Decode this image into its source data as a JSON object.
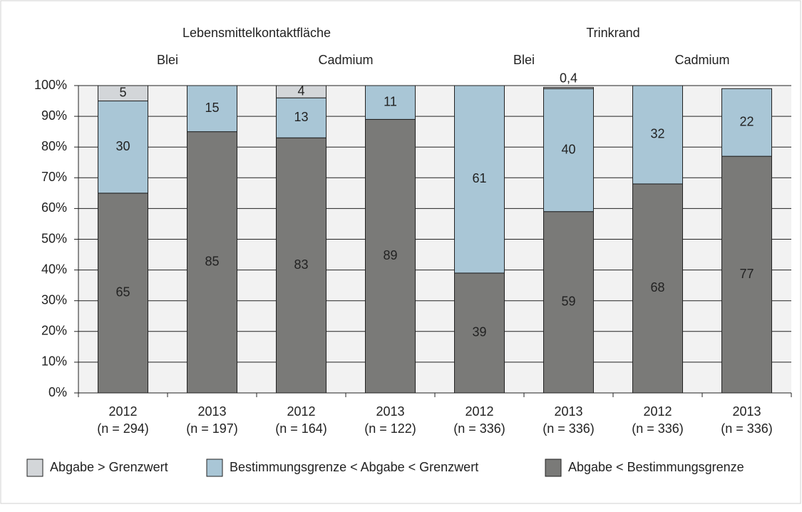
{
  "chart_data": {
    "type": "stacked_bar",
    "groups": [
      {
        "label": "Lebensmittelkontaktfläche",
        "subgroups": [
          "Blei",
          "Cadmium"
        ]
      },
      {
        "label": "Trinkrand",
        "subgroups": [
          "Blei",
          "Cadmium"
        ]
      }
    ],
    "categories": [
      [
        "2012",
        "(n = 294)"
      ],
      [
        "2013",
        "(n = 197)"
      ],
      [
        "2012",
        "(n = 164)"
      ],
      [
        "2013",
        "(n = 122)"
      ],
      [
        "2012",
        "(n = 336)"
      ],
      [
        "2013",
        "(n = 336)"
      ],
      [
        "2012",
        "(n = 336)"
      ],
      [
        "2013",
        "(n = 336)"
      ]
    ],
    "series": [
      {
        "name": "Abgabe > Grenzwert",
        "color": "#d3d6d9",
        "values": [
          5,
          0,
          4,
          0,
          0,
          0.4,
          0,
          0
        ],
        "value_labels": [
          "5",
          null,
          "4",
          null,
          null,
          "0,4",
          null,
          null
        ]
      },
      {
        "name": "Bestimmungsgrenze < Abgabe < Grenzwert",
        "color": "#a9c6d6",
        "values": [
          30,
          15,
          13,
          11,
          61,
          40,
          32,
          22
        ]
      },
      {
        "name": "Abgabe < Bestimmungsgrenze",
        "color": "#7a7a78",
        "values": [
          65,
          85,
          83,
          89,
          39,
          59,
          68,
          77
        ]
      }
    ],
    "ylim": [
      0,
      100
    ],
    "yticks": [
      {
        "value": 0,
        "label": "0%"
      },
      {
        "value": 10,
        "label": "10%"
      },
      {
        "value": 20,
        "label": "20%"
      },
      {
        "value": 30,
        "label": "30%"
      },
      {
        "value": 40,
        "label": "40%"
      },
      {
        "value": 50,
        "label": "50%"
      },
      {
        "value": 60,
        "label": "60%"
      },
      {
        "value": 70,
        "label": "70%"
      },
      {
        "value": 80,
        "label": "80%"
      },
      {
        "value": 90,
        "label": "90%"
      },
      {
        "value": 100,
        "label": "100%"
      }
    ],
    "grid": true
  }
}
